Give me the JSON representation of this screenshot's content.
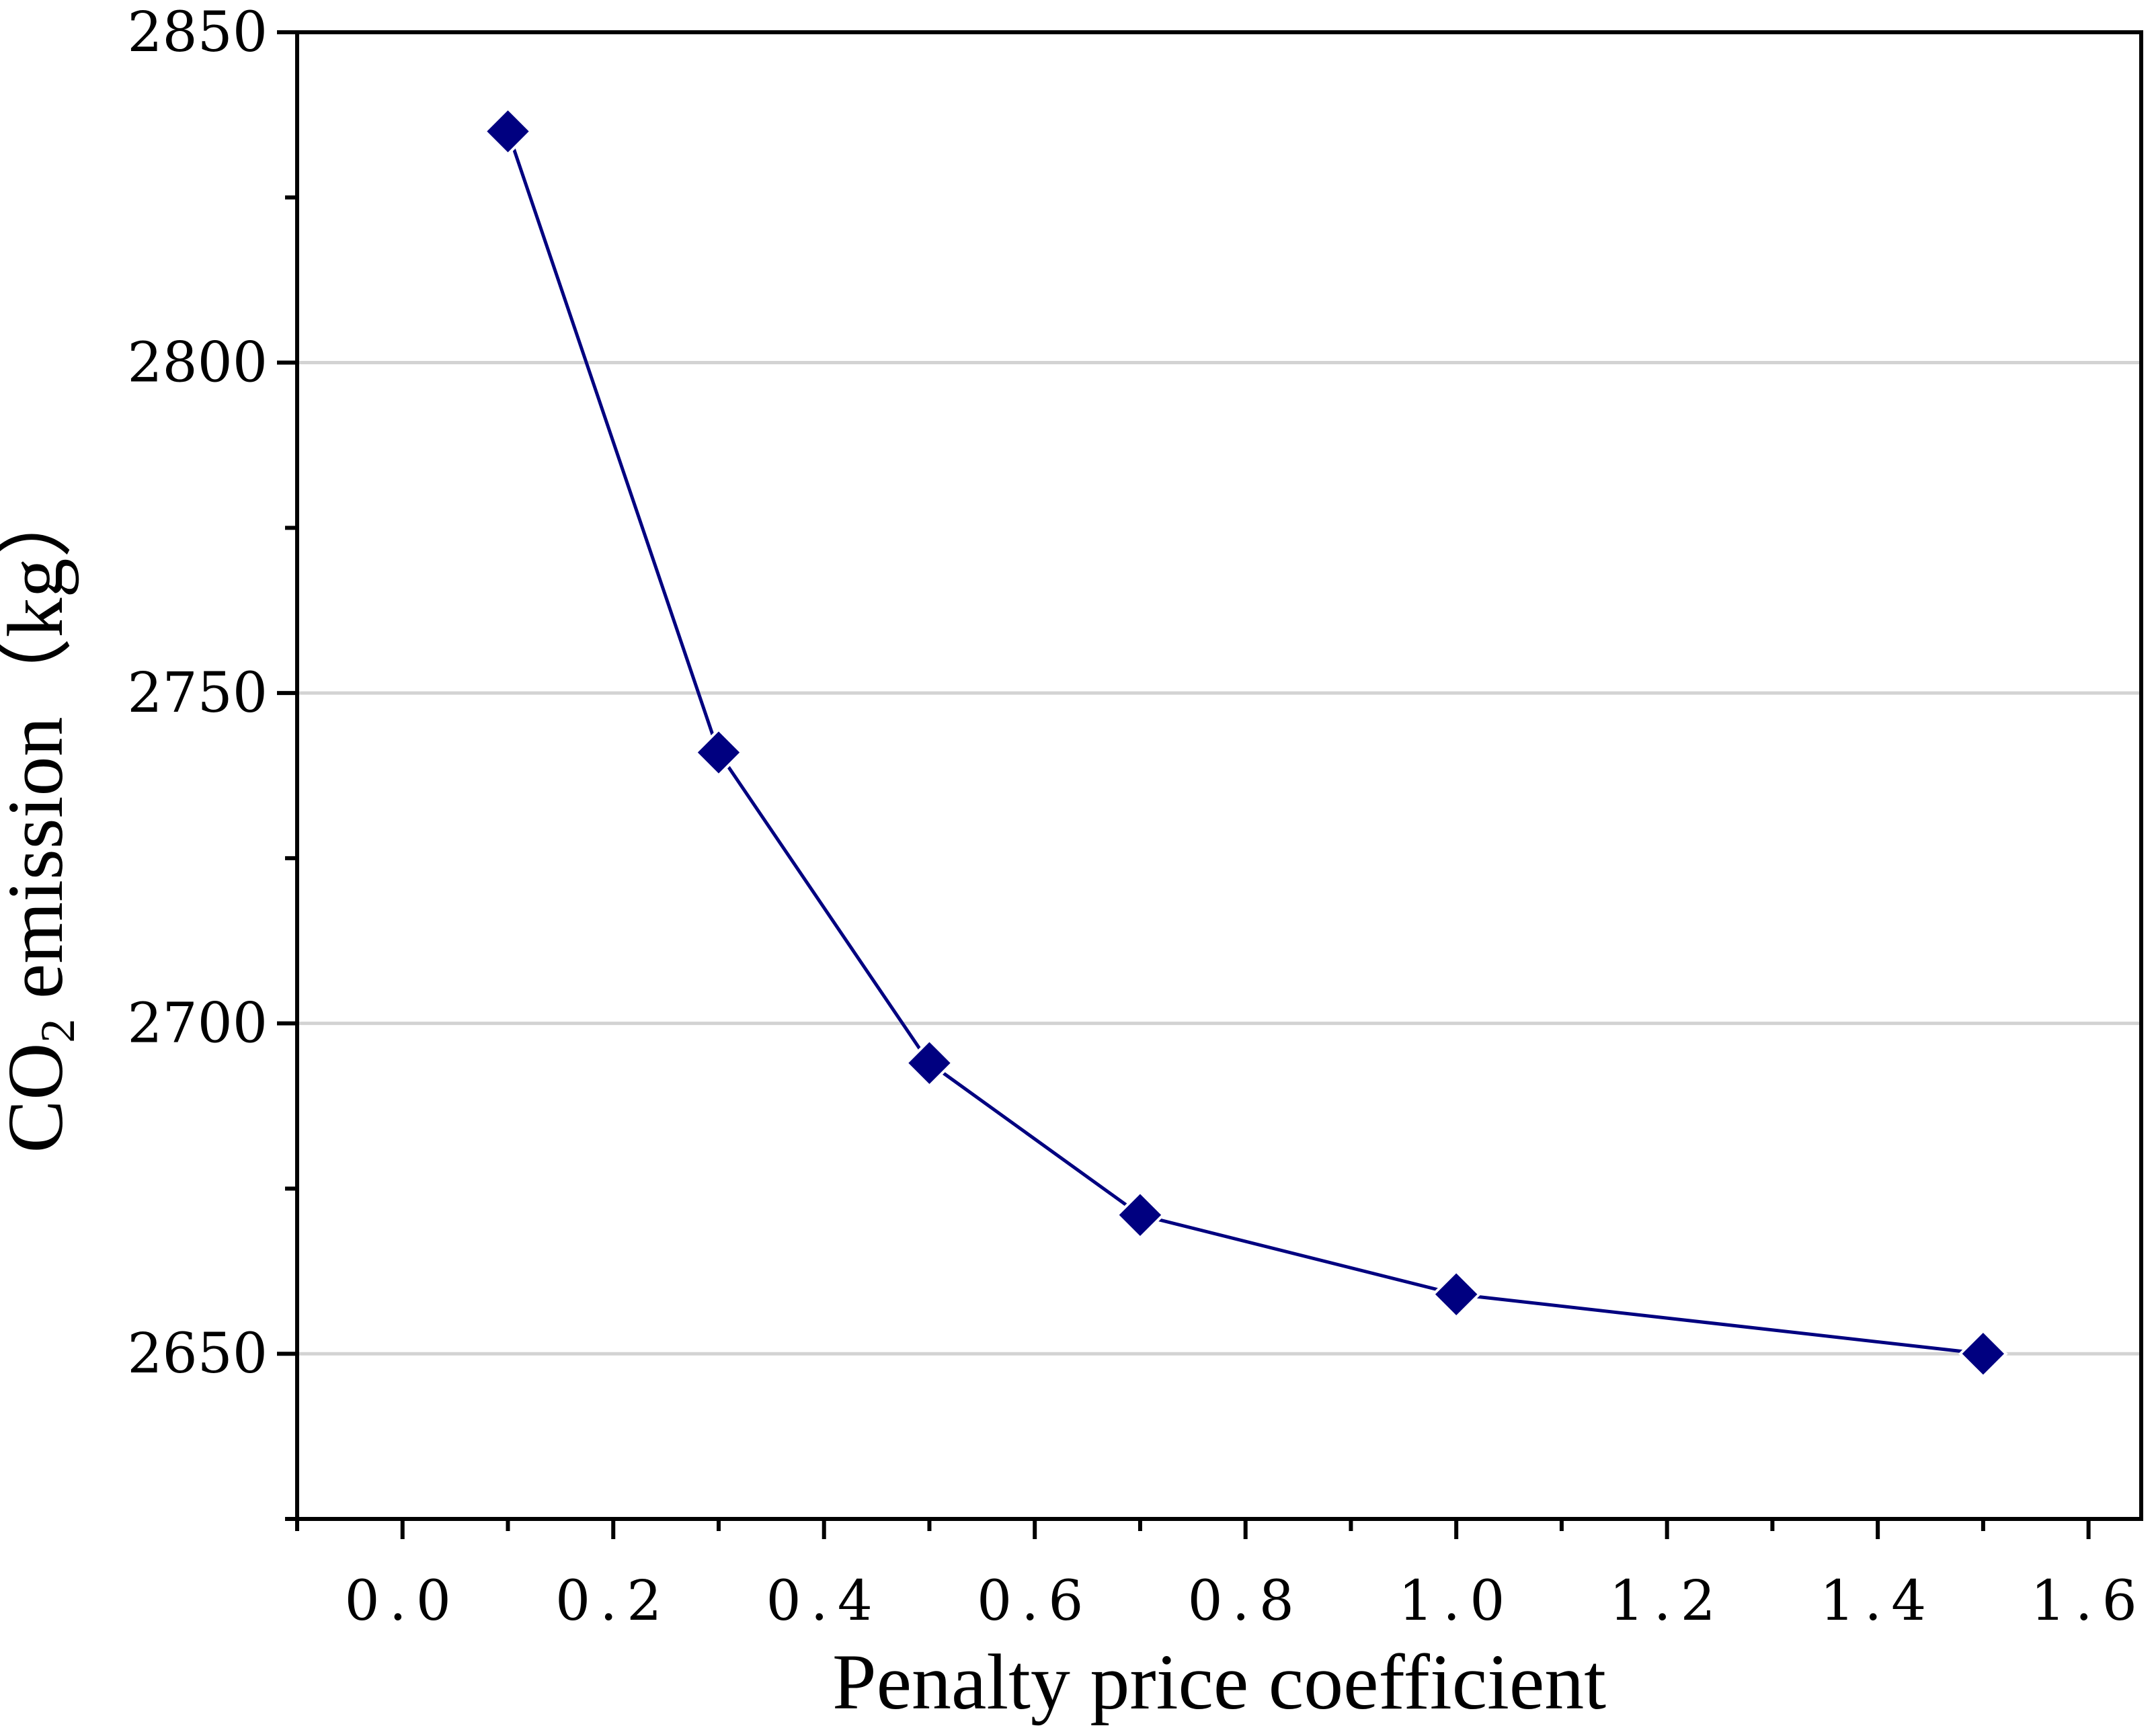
{
  "chart_data": {
    "type": "line",
    "title": "",
    "xlabel": "Penalty price coefficient",
    "ylabel": {
      "prefix": "CO",
      "subscript": "2",
      "suffix": " emission（kg）"
    },
    "xlim": [
      -0.1,
      1.65
    ],
    "ylim": [
      2625,
      2850
    ],
    "x_ticks": [
      0.0,
      0.2,
      0.4,
      0.6,
      0.8,
      1.0,
      1.2,
      1.4,
      1.6
    ],
    "x_tick_labels": [
      "0.0",
      "0.2",
      "0.4",
      "0.6",
      "0.8",
      "1.0",
      "1.2",
      "1.4",
      "1.6"
    ],
    "x_minor_ticks": [
      -0.1,
      0.1,
      0.3,
      0.5,
      0.7,
      0.9,
      1.1,
      1.3,
      1.5
    ],
    "y_ticks": [
      2650,
      2700,
      2750,
      2800,
      2850
    ],
    "y_tick_labels": [
      "2650",
      "2700",
      "2750",
      "2800",
      "2850"
    ],
    "y_minor_ticks": [
      2625,
      2675,
      2725,
      2775,
      2825
    ],
    "y_grid": [
      2650,
      2700,
      2750,
      2800
    ],
    "grid": "horizontal",
    "legend": "none",
    "series": [
      {
        "name": "CO2 emission",
        "marker": "diamond",
        "color": "#000080",
        "x": [
          0.1,
          0.3,
          0.5,
          0.7,
          1.0,
          1.5
        ],
        "y": [
          2835,
          2741,
          2694,
          2671,
          2659,
          2650
        ]
      }
    ]
  }
}
